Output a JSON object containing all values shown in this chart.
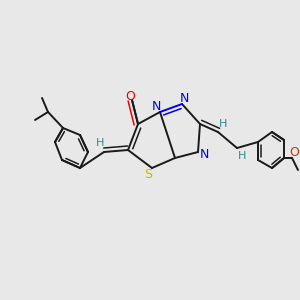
{
  "bg_color": "#e8e8e8",
  "bond_color": "#1a1a1a",
  "n_color": "#0000ee",
  "o_color": "#ee0000",
  "s_color": "#bbbb00",
  "h_color": "#2e8b8b",
  "methoxy_o_color": "#cc3300",
  "figsize": [
    3.0,
    3.0
  ],
  "dpi": 100,
  "xlim": [
    0,
    300
  ],
  "ylim": [
    0,
    300
  ]
}
